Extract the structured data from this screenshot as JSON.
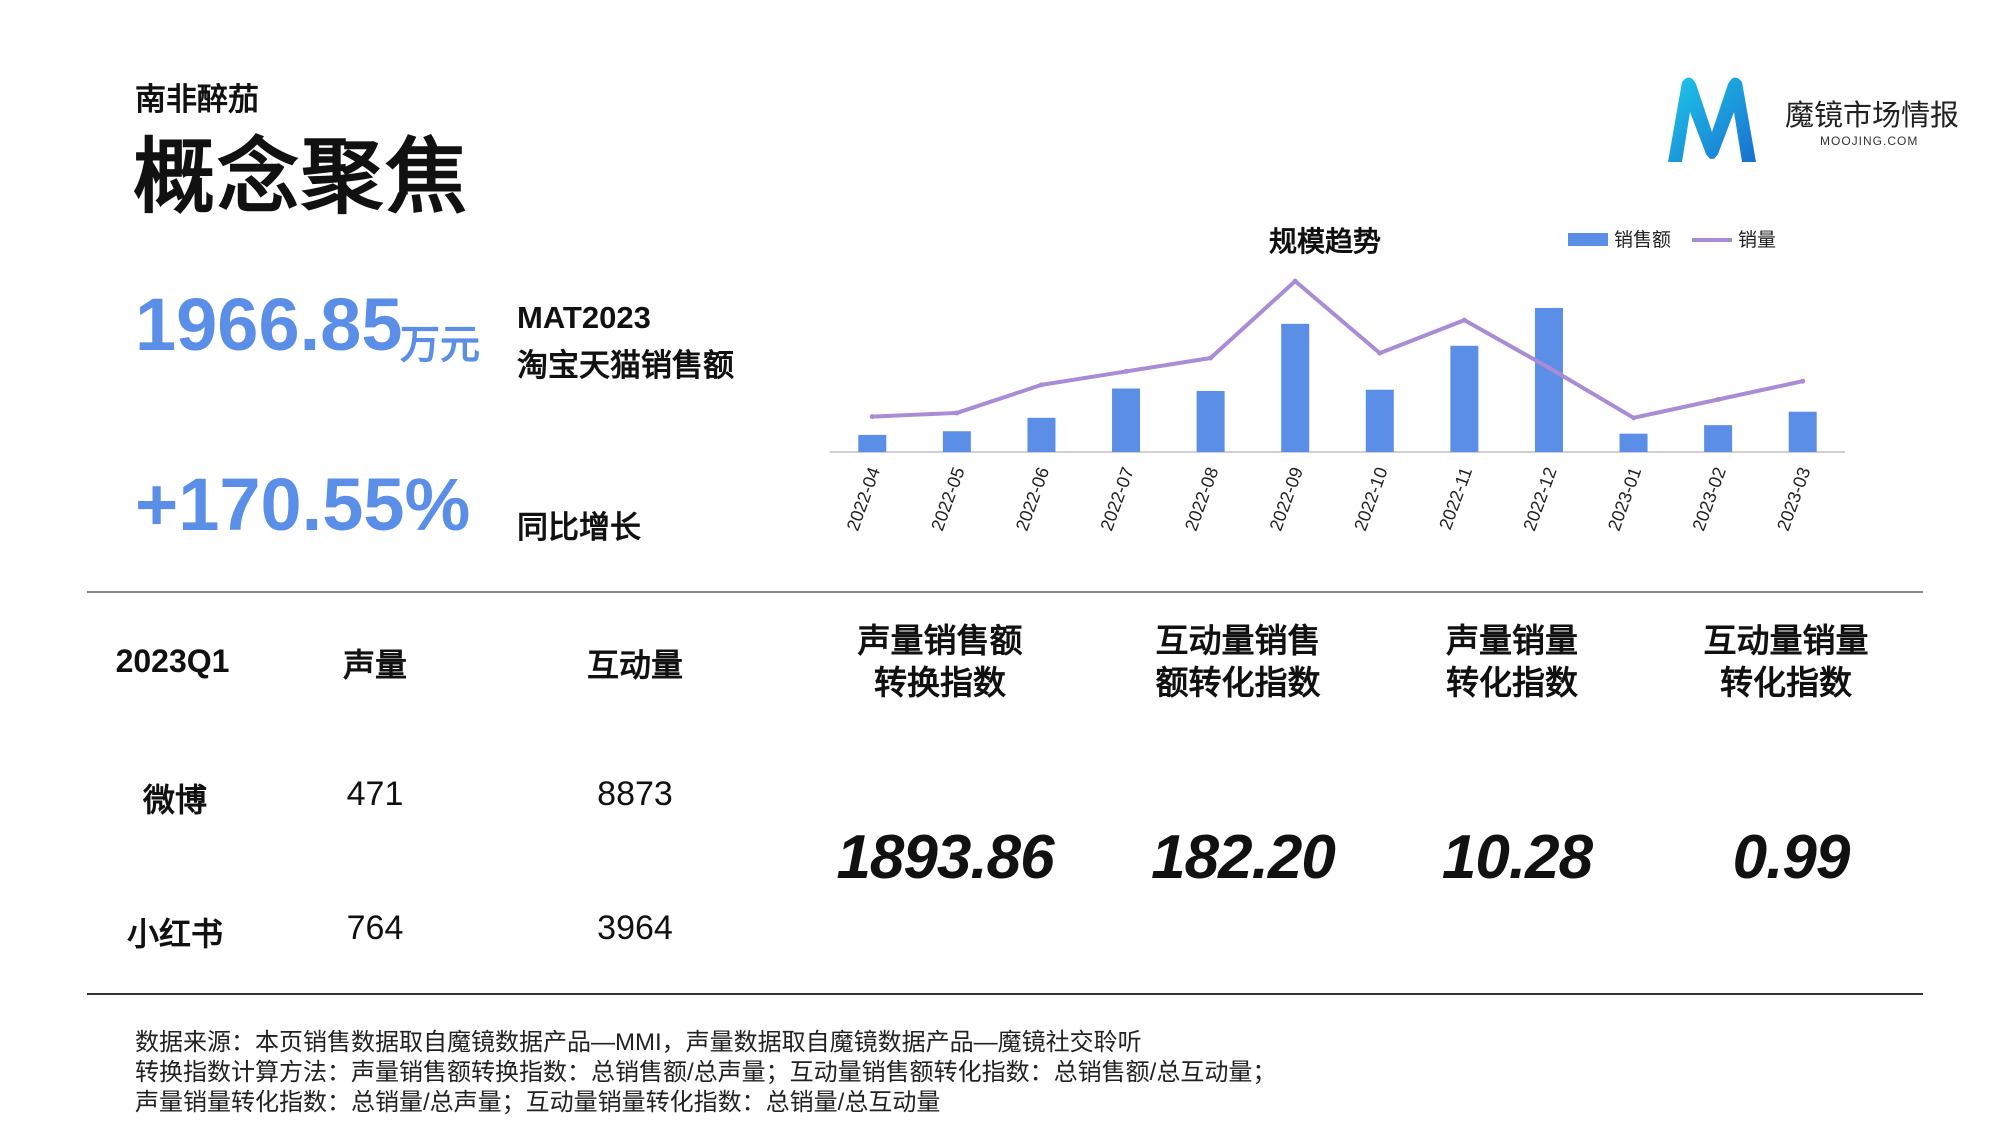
{
  "header": {
    "brand": "南非醉茄",
    "title": "概念聚焦",
    "logo_cn": "魔镜市场情报",
    "logo_en": "MOOJING.COM",
    "accent": "#5b8ee6"
  },
  "kpis": {
    "sales_value": "1966.85",
    "sales_unit": "万元",
    "sales_label_1": "MAT2023",
    "sales_label_2": "淘宝天猫销售额",
    "growth_value": "+170.55%",
    "growth_label": "同比增长"
  },
  "chart_data": {
    "type": "bar",
    "title": "规模趋势",
    "categories": [
      "2022-04",
      "2022-05",
      "2022-06",
      "2022-07",
      "2022-08",
      "2022-09",
      "2022-10",
      "2022-11",
      "2022-12",
      "2023-01",
      "2023-02",
      "2023-03"
    ],
    "series": [
      {
        "name": "销售额",
        "type": "bar",
        "color": "#5b8ee6",
        "values": [
          14,
          17,
          28,
          52,
          50,
          105,
          51,
          87,
          118,
          15,
          22,
          33
        ]
      },
      {
        "name": "销量",
        "type": "line",
        "color": "#a98bd6",
        "values": [
          29,
          32,
          55,
          66,
          77,
          140,
          81,
          108,
          69,
          28,
          43,
          58
        ]
      }
    ],
    "ylim": [
      0,
      145
    ],
    "legend": "top-right",
    "grid": false
  },
  "table": {
    "period": "2023Q1",
    "headers": [
      "声量",
      "互动量"
    ],
    "rows": [
      {
        "platform": "微博",
        "voice": "471",
        "interaction": "8873"
      },
      {
        "platform": "小红书",
        "voice": "764",
        "interaction": "3964"
      }
    ]
  },
  "indices": [
    {
      "label_1": "声量销售额",
      "label_2": "转换指数",
      "value": "1893.86"
    },
    {
      "label_1": "互动量销售",
      "label_2": "额转化指数",
      "value": "182.20"
    },
    {
      "label_1": "声量销量",
      "label_2": "转化指数",
      "value": "10.28"
    },
    {
      "label_1": "互动量销量",
      "label_2": "转化指数",
      "value": "0.99"
    }
  ],
  "notes": [
    "数据来源：本页销售数据取自魔镜数据产品—MMI，声量数据取自魔镜数据产品—魔镜社交聆听",
    "转换指数计算方法：声量销售额转换指数：总销售额/总声量；互动量销售额转化指数：总销售额/总互动量；",
    "声量销量转化指数：总销量/总声量；互动量销量转化指数：总销量/总互动量"
  ]
}
